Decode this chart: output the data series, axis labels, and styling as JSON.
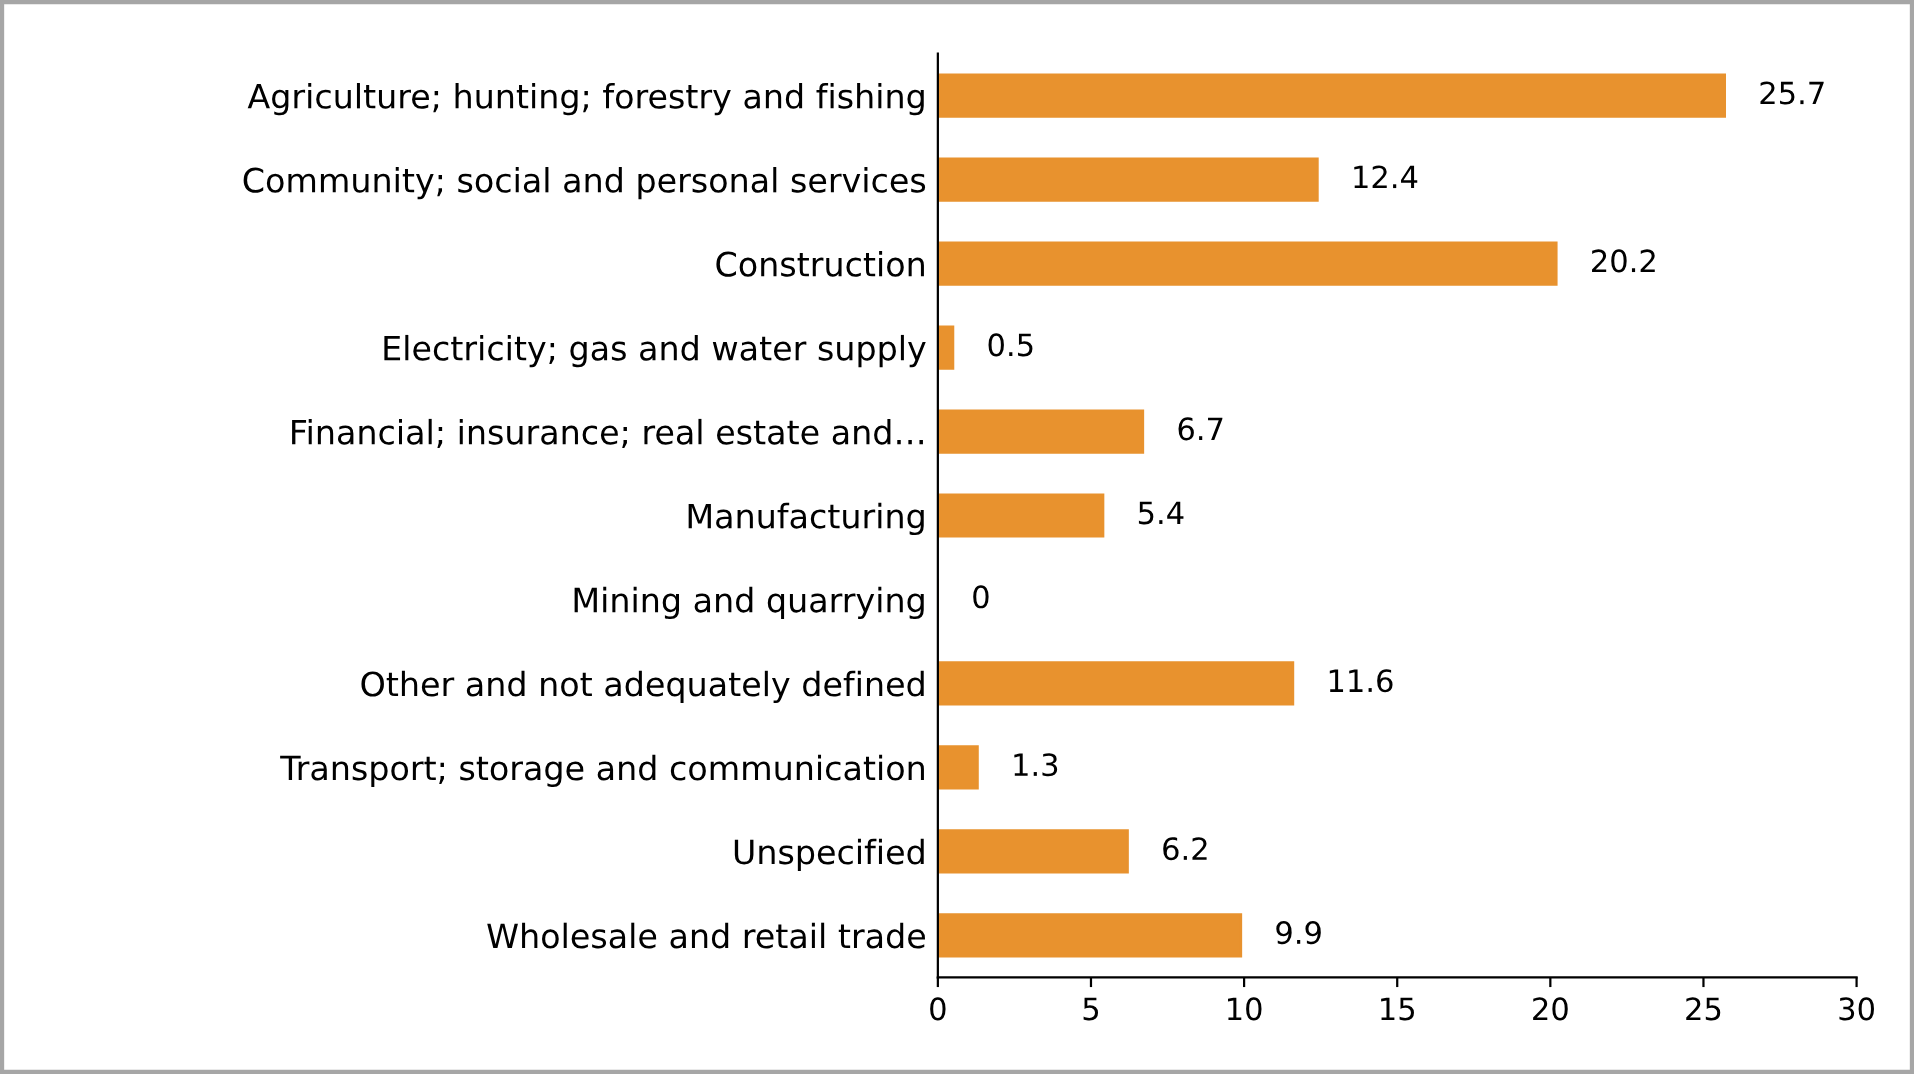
{
  "chart_data": {
    "type": "bar",
    "orientation": "horizontal",
    "categories": [
      "Agriculture; hunting; forestry and fishing",
      "Community; social and personal services",
      "Construction",
      "Electricity; gas and water supply",
      "Financial; insurance; real estate and…",
      "Manufacturing",
      "Mining and quarrying",
      "Other and not adequately defined",
      "Transport; storage and communication",
      "Unspecified",
      "Wholesale and retail trade"
    ],
    "values": [
      25.7,
      12.4,
      20.2,
      0.5,
      6.7,
      5.4,
      0,
      11.6,
      1.3,
      6.2,
      9.9
    ],
    "color": "#e8922e",
    "xlim": [
      0,
      30
    ],
    "xticks": [
      0,
      5,
      10,
      15,
      20,
      25,
      30
    ],
    "grid": false,
    "legend": false,
    "data_labels": true
  }
}
